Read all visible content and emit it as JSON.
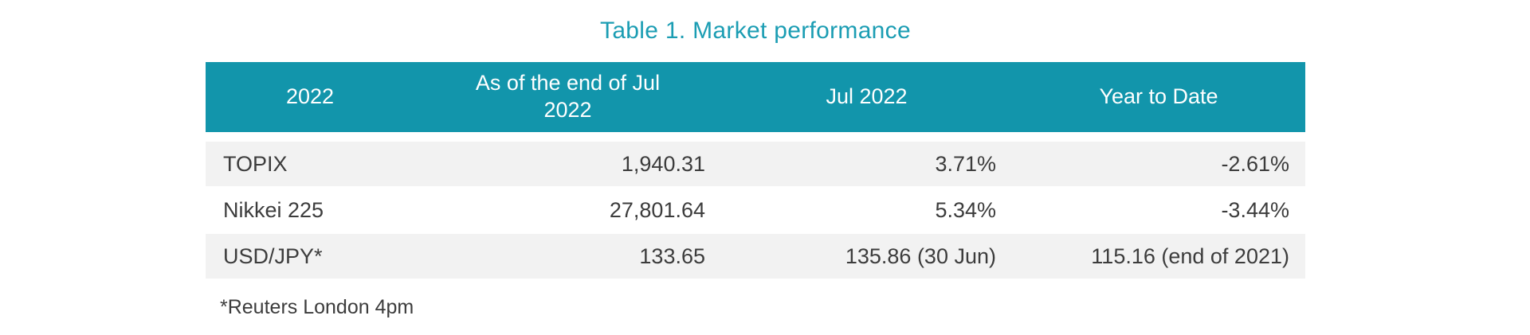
{
  "title": "Table 1. Market performance",
  "colors": {
    "title_accent": "#1b9db3",
    "header_background": "#1295ab",
    "header_text": "#ffffff",
    "row_shaded_background": "#f2f2f2",
    "body_text": "#3c3c3c"
  },
  "table": {
    "columns": [
      {
        "label": "2022"
      },
      {
        "label": "As of the end of Jul 2022"
      },
      {
        "label": "Jul 2022"
      },
      {
        "label": "Year to Date"
      }
    ],
    "rows": [
      {
        "cells": [
          "TOPIX",
          "1,940.31",
          "3.71%",
          "-2.61%"
        ]
      },
      {
        "cells": [
          "Nikkei 225",
          "27,801.64",
          "5.34%",
          "-3.44%"
        ]
      },
      {
        "cells": [
          "USD/JPY*",
          "133.65",
          "135.86 (30 Jun)",
          "115.16 (end of 2021)"
        ]
      }
    ],
    "footnote": "*Reuters London 4pm"
  },
  "chart_data": {
    "type": "table",
    "title": "Table 1. Market performance",
    "columns": [
      "2022",
      "As of the end of Jul 2022",
      "Jul 2022",
      "Year to Date"
    ],
    "rows": [
      [
        "TOPIX",
        "1,940.31",
        "3.71%",
        "-2.61%"
      ],
      [
        "Nikkei 225",
        "27,801.64",
        "5.34%",
        "-3.44%"
      ],
      [
        "USD/JPY*",
        "133.65",
        "135.86 (30 Jun)",
        "115.16 (end of 2021)"
      ]
    ],
    "footnote": "*Reuters London 4pm"
  }
}
